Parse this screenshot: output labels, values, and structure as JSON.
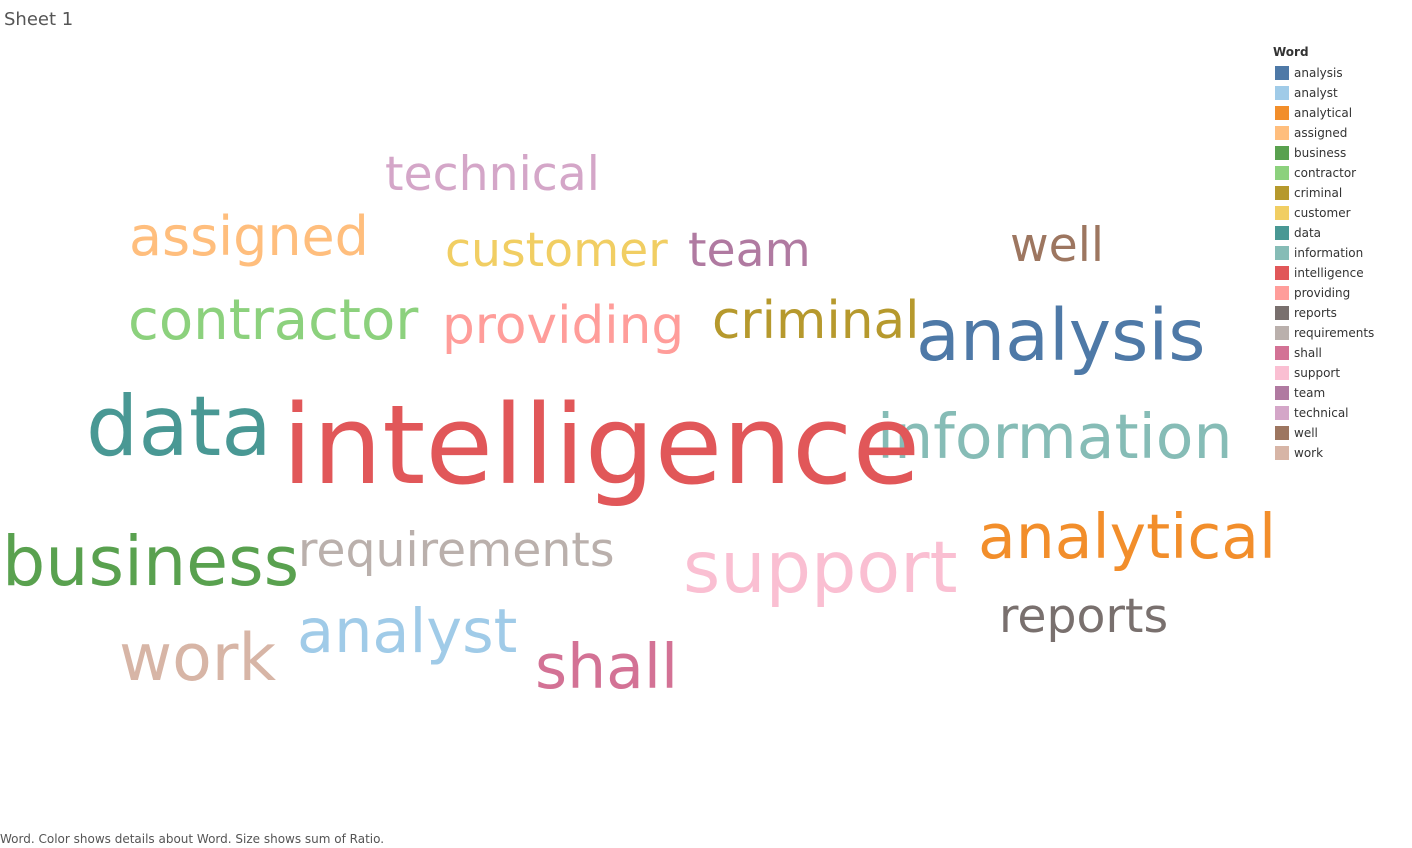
{
  "sheet": {
    "title": "Sheet 1"
  },
  "caption": "Word.  Color shows details about Word.  Size shows sum of Ratio.",
  "chart_data": {
    "type": "wordcloud",
    "legend_title": "Word",
    "legend_position": "right",
    "words": [
      {
        "text": "analysis",
        "color": "#4E79A7",
        "weight": 6.5
      },
      {
        "text": "analyst",
        "color": "#A0CBE8",
        "weight": 5.5
      },
      {
        "text": "analytical",
        "color": "#F28E2B",
        "weight": 5.6
      },
      {
        "text": "assigned",
        "color": "#FFBE7D",
        "weight": 4.9
      },
      {
        "text": "business",
        "color": "#59A14F",
        "weight": 6.2
      },
      {
        "text": "contractor",
        "color": "#8CD17D",
        "weight": 5.1
      },
      {
        "text": "criminal",
        "color": "#B6992D",
        "weight": 4.7
      },
      {
        "text": "customer",
        "color": "#F1CE63",
        "weight": 4.3
      },
      {
        "text": "data",
        "color": "#499894",
        "weight": 7.5
      },
      {
        "text": "information",
        "color": "#86BCB6",
        "weight": 5.6
      },
      {
        "text": "intelligence",
        "color": "#E15759",
        "weight": 10.0
      },
      {
        "text": "providing",
        "color": "#FF9D9A",
        "weight": 4.7
      },
      {
        "text": "reports",
        "color": "#79706E",
        "weight": 4.3
      },
      {
        "text": "requirements",
        "color": "#BAB0AC",
        "weight": 4.3
      },
      {
        "text": "shall",
        "color": "#D37295",
        "weight": 5.6
      },
      {
        "text": "support",
        "color": "#FABFD2",
        "weight": 6.5
      },
      {
        "text": "team",
        "color": "#B07AA1",
        "weight": 4.3
      },
      {
        "text": "technical",
        "color": "#D4A6C8",
        "weight": 4.3
      },
      {
        "text": "well",
        "color": "#9D7660",
        "weight": 4.3
      },
      {
        "text": "work",
        "color": "#D7B5A6",
        "weight": 5.9
      }
    ]
  }
}
